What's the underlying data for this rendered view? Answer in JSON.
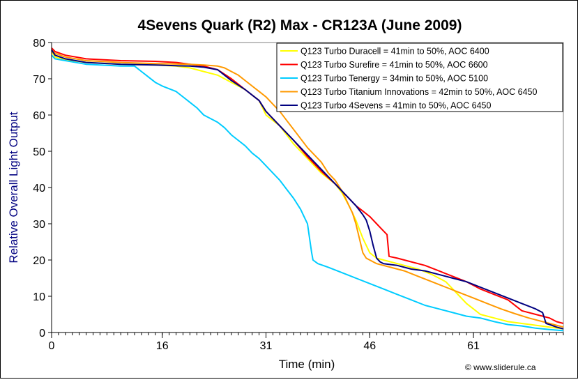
{
  "chart_data": {
    "type": "line",
    "title": "4Sevens Quark (R2) Max - CR123A (June 2009)",
    "xlabel": "Time (min)",
    "ylabel": "Relative Overall Light Output",
    "xlim": [
      0,
      74
    ],
    "ylim": [
      0,
      80
    ],
    "x_ticks": [
      0,
      16,
      31,
      46,
      61
    ],
    "y_ticks": [
      0,
      10,
      20,
      30,
      40,
      50,
      60,
      70,
      80
    ],
    "grid": false,
    "legend_position": "top-right",
    "credit": "© www.sliderule.ca",
    "series": [
      {
        "name": "Q123 Turbo Duracell = 41min to 50%, AOC 6400",
        "color": "#ffff00",
        "points": [
          [
            0,
            77.5
          ],
          [
            0.5,
            76
          ],
          [
            2,
            75.3
          ],
          [
            5,
            74.5
          ],
          [
            10,
            74
          ],
          [
            15,
            73.8
          ],
          [
            18,
            73.5
          ],
          [
            20,
            73
          ],
          [
            22,
            72
          ],
          [
            24,
            71
          ],
          [
            26,
            69
          ],
          [
            28,
            67
          ],
          [
            30,
            64
          ],
          [
            31,
            60
          ],
          [
            33,
            57
          ],
          [
            35,
            52
          ],
          [
            37,
            48
          ],
          [
            39,
            44
          ],
          [
            41,
            41
          ],
          [
            42,
            38.5
          ],
          [
            43,
            35
          ],
          [
            44,
            31
          ],
          [
            45,
            26
          ],
          [
            46,
            22
          ],
          [
            47,
            20.5
          ],
          [
            50,
            19
          ],
          [
            53,
            17.5
          ],
          [
            55,
            16
          ],
          [
            57,
            14
          ],
          [
            58,
            12
          ],
          [
            59,
            10
          ],
          [
            60,
            8
          ],
          [
            61,
            6.5
          ],
          [
            62,
            5
          ],
          [
            64,
            4
          ],
          [
            66,
            3
          ],
          [
            68,
            2.5
          ],
          [
            70,
            2
          ],
          [
            72,
            1.5
          ],
          [
            74,
            1
          ]
        ]
      },
      {
        "name": "Q123 Turbo Surefire = 41min to 50%, AOC 6600",
        "color": "#ff0000",
        "points": [
          [
            0,
            78.5
          ],
          [
            0.5,
            77.5
          ],
          [
            2,
            76.5
          ],
          [
            5,
            75.5
          ],
          [
            10,
            75
          ],
          [
            15,
            74.8
          ],
          [
            18,
            74.5
          ],
          [
            20,
            74
          ],
          [
            22,
            73.5
          ],
          [
            24,
            72.5
          ],
          [
            26,
            70
          ],
          [
            28,
            67
          ],
          [
            30,
            64
          ],
          [
            31,
            61
          ],
          [
            33,
            57
          ],
          [
            35,
            53
          ],
          [
            37,
            48.5
          ],
          [
            39,
            44.5
          ],
          [
            41,
            41
          ],
          [
            42,
            39
          ],
          [
            43,
            37
          ],
          [
            44,
            35
          ],
          [
            45,
            33.5
          ],
          [
            46,
            32
          ],
          [
            47,
            30
          ],
          [
            47.5,
            29
          ],
          [
            48,
            28
          ],
          [
            48.5,
            27
          ],
          [
            48.8,
            21
          ],
          [
            50,
            20.5
          ],
          [
            52,
            19.5
          ],
          [
            54,
            18.5
          ],
          [
            56,
            17
          ],
          [
            58,
            15.5
          ],
          [
            60,
            14
          ],
          [
            61,
            13
          ],
          [
            62,
            12
          ],
          [
            64,
            10.5
          ],
          [
            66,
            9
          ],
          [
            68,
            6
          ],
          [
            70,
            5
          ],
          [
            72,
            4
          ],
          [
            73,
            3
          ],
          [
            74,
            2.5
          ]
        ]
      },
      {
        "name": "Q123 Turbo Tenergy = 34min to 50%, AOC 5100",
        "color": "#00ccff",
        "points": [
          [
            0,
            76.5
          ],
          [
            0.5,
            75.5
          ],
          [
            2,
            75
          ],
          [
            5,
            74
          ],
          [
            10,
            73.5
          ],
          [
            12,
            73.5
          ],
          [
            13,
            72
          ],
          [
            14,
            70.5
          ],
          [
            15,
            69
          ],
          [
            16,
            68
          ],
          [
            18,
            66.5
          ],
          [
            19,
            65
          ],
          [
            20,
            63.5
          ],
          [
            21,
            62
          ],
          [
            22,
            60
          ],
          [
            24,
            58
          ],
          [
            25,
            56.5
          ],
          [
            26,
            54.5
          ],
          [
            27,
            53
          ],
          [
            28,
            51.5
          ],
          [
            29,
            49.5
          ],
          [
            30,
            48
          ],
          [
            31,
            46
          ],
          [
            32,
            44
          ],
          [
            33,
            42
          ],
          [
            34,
            39.5
          ],
          [
            35,
            37
          ],
          [
            36,
            34
          ],
          [
            36.5,
            32
          ],
          [
            37,
            30
          ],
          [
            37.3,
            26
          ],
          [
            37.6,
            22
          ],
          [
            37.8,
            20
          ],
          [
            38.5,
            19
          ],
          [
            40,
            18
          ],
          [
            42,
            16.5
          ],
          [
            44,
            15
          ],
          [
            46,
            13.5
          ],
          [
            48,
            12
          ],
          [
            50,
            10.5
          ],
          [
            52,
            9
          ],
          [
            54,
            7.5
          ],
          [
            56,
            6.5
          ],
          [
            58,
            5.5
          ],
          [
            60,
            4.5
          ],
          [
            62,
            4
          ],
          [
            64,
            3
          ],
          [
            66,
            2.2
          ],
          [
            68,
            1.8
          ],
          [
            70,
            1.2
          ],
          [
            72,
            0.8
          ],
          [
            74,
            0.5
          ]
        ]
      },
      {
        "name": "Q123 Turbo Titanium Innovations = 42min to 50%, AOC 6450",
        "color": "#ff9900",
        "points": [
          [
            0,
            78
          ],
          [
            0.5,
            77
          ],
          [
            2,
            76
          ],
          [
            5,
            75
          ],
          [
            10,
            74.5
          ],
          [
            15,
            74.2
          ],
          [
            20,
            74
          ],
          [
            22,
            73.8
          ],
          [
            24,
            73.5
          ],
          [
            25,
            73
          ],
          [
            26,
            72
          ],
          [
            27,
            71
          ],
          [
            28,
            69.5
          ],
          [
            29,
            68
          ],
          [
            30,
            66.5
          ],
          [
            31,
            65
          ],
          [
            32,
            63
          ],
          [
            33,
            61
          ],
          [
            34,
            58.5
          ],
          [
            35,
            56
          ],
          [
            36,
            53.5
          ],
          [
            37,
            51
          ],
          [
            38,
            49
          ],
          [
            39,
            47
          ],
          [
            40,
            44
          ],
          [
            41,
            42
          ],
          [
            42,
            39
          ],
          [
            42.5,
            37
          ],
          [
            43,
            35
          ],
          [
            43.5,
            33
          ],
          [
            44,
            30
          ],
          [
            44.5,
            26
          ],
          [
            45,
            22
          ],
          [
            45.5,
            20.5
          ],
          [
            46,
            20
          ],
          [
            47,
            19
          ],
          [
            49,
            18
          ],
          [
            51,
            17
          ],
          [
            53,
            15.5
          ],
          [
            55,
            14
          ],
          [
            57,
            12.5
          ],
          [
            59,
            11
          ],
          [
            61,
            9.5
          ],
          [
            63,
            8
          ],
          [
            65,
            6.5
          ],
          [
            67,
            5.2
          ],
          [
            69,
            4
          ],
          [
            71,
            3
          ],
          [
            73,
            2
          ],
          [
            74,
            1.5
          ]
        ]
      },
      {
        "name": "Q123 Turbo 4Sevens = 41min to 50%, AOC 6450",
        "color": "#000080",
        "points": [
          [
            0,
            78
          ],
          [
            0.5,
            76.5
          ],
          [
            2,
            75.5
          ],
          [
            5,
            74.5
          ],
          [
            10,
            74
          ],
          [
            15,
            73.8
          ],
          [
            18,
            73.6
          ],
          [
            20,
            73.5
          ],
          [
            22,
            73.2
          ],
          [
            24,
            72.5
          ],
          [
            25,
            71
          ],
          [
            26,
            69.5
          ],
          [
            28,
            67
          ],
          [
            30,
            64
          ],
          [
            31,
            61
          ],
          [
            33,
            57
          ],
          [
            35,
            53
          ],
          [
            37,
            49
          ],
          [
            39,
            45
          ],
          [
            41,
            41
          ],
          [
            42,
            39
          ],
          [
            43,
            37
          ],
          [
            44,
            35
          ],
          [
            45,
            32.5
          ],
          [
            45.5,
            31
          ],
          [
            46,
            28
          ],
          [
            46.5,
            24
          ],
          [
            47,
            20.5
          ],
          [
            47.5,
            19.5
          ],
          [
            48,
            19
          ],
          [
            50,
            18.5
          ],
          [
            52,
            17.5
          ],
          [
            54,
            17
          ],
          [
            56,
            16
          ],
          [
            58,
            15
          ],
          [
            60,
            14
          ],
          [
            62,
            12.5
          ],
          [
            64,
            11
          ],
          [
            66,
            9.5
          ],
          [
            68,
            8
          ],
          [
            70,
            6.5
          ],
          [
            71,
            5.5
          ],
          [
            71.5,
            2.5
          ],
          [
            72,
            2.2
          ],
          [
            73,
            1.5
          ],
          [
            74,
            1
          ]
        ]
      }
    ]
  }
}
